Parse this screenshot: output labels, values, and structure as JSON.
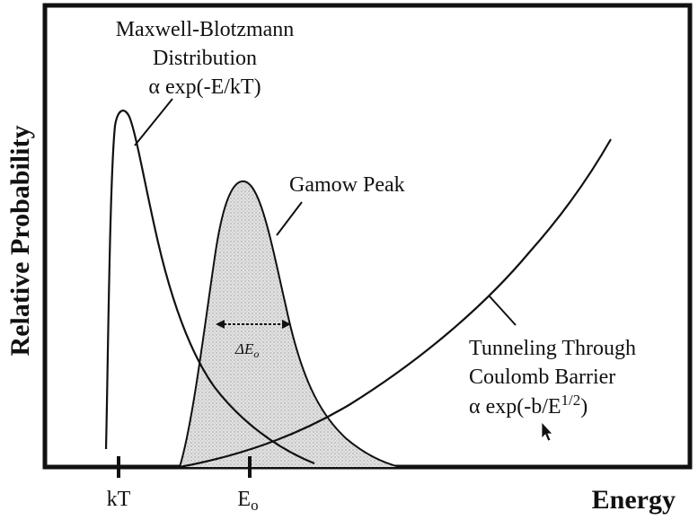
{
  "figure": {
    "y_axis_label": "Relative Probability",
    "x_axis_label": "Energy",
    "ticks": {
      "kt": "kT",
      "e0_base": "E",
      "e0_sub": "o"
    },
    "labels": {
      "mb_line1": "Maxwell-Blotzmann",
      "mb_line2": "Distribution",
      "mb_line3": "α exp(-E/kT)",
      "gamow": "Gamow Peak",
      "delta_base": "ΔE",
      "delta_sub": "o",
      "tunnel_line1": "Tunneling Through",
      "tunnel_line2": "Coulomb Barrier",
      "tunnel_line3_main": "α exp(-b/E",
      "tunnel_line3_sup": "1/2",
      "tunnel_line3_end": ")"
    },
    "colors": {
      "frame": "#111111",
      "curve": "#111111",
      "fill": "#d6d6d6",
      "background": "#ffffff"
    },
    "cursor_icon": "mouse-pointer-icon"
  }
}
